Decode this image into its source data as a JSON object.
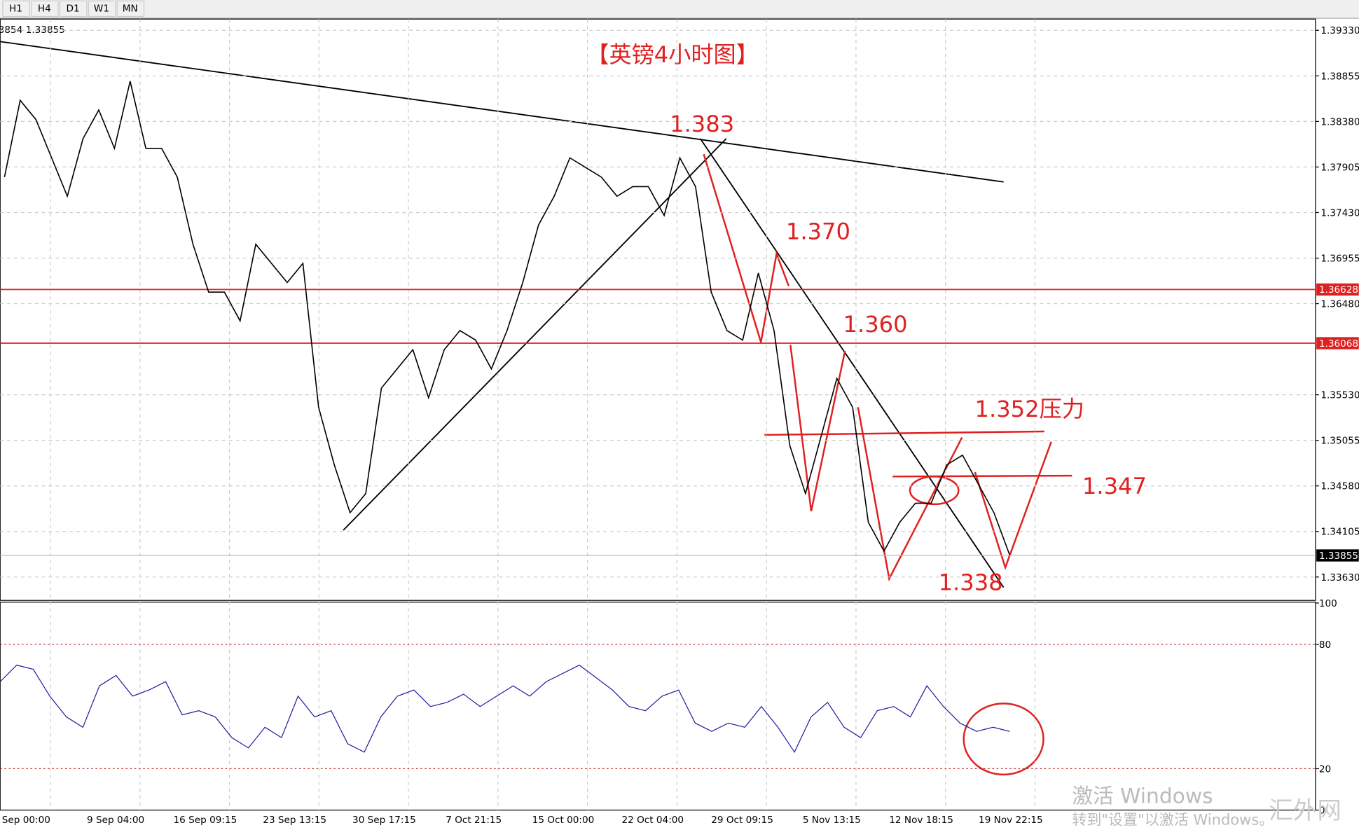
{
  "toolbar": {
    "buttons": [
      "H1",
      "H4",
      "D1",
      "W1",
      "MN"
    ]
  },
  "chart": {
    "symbol_info": "3854 1.33855",
    "title": "【英镑4小时图】",
    "annotations": [
      "1.383",
      "1.370",
      "1.360",
      "1.352压力",
      "1.347",
      "1.338"
    ],
    "price_ticks": [
      {
        "value": 1.3933,
        "label": "1.39330"
      },
      {
        "value": 1.38855,
        "label": "1.38855"
      },
      {
        "value": 1.3838,
        "label": "1.38380"
      },
      {
        "value": 1.37905,
        "label": "1.37905"
      },
      {
        "value": 1.3743,
        "label": "1.37430"
      },
      {
        "value": 1.36955,
        "label": "1.36955"
      },
      {
        "value": 1.3648,
        "label": "1.36480"
      },
      {
        "value": 1.3553,
        "label": "1.35530"
      },
      {
        "value": 1.35055,
        "label": "1.35055"
      },
      {
        "value": 1.3458,
        "label": "1.34580"
      },
      {
        "value": 1.34105,
        "label": "1.34105"
      },
      {
        "value": 1.3363,
        "label": "1.33630"
      }
    ],
    "price_lim": [
      1.3933,
      1.3363
    ],
    "levels": [
      {
        "value": 1.36628,
        "label": "1.36628",
        "color": "#e02020"
      },
      {
        "value": 1.36068,
        "label": "1.36068",
        "color": "#e02020"
      }
    ],
    "current_price": {
      "value": 1.33855,
      "label": "1.33855"
    },
    "closes": [
      1.378,
      1.386,
      1.384,
      1.38,
      1.376,
      1.382,
      1.385,
      1.381,
      1.388,
      1.381,
      1.381,
      1.378,
      1.371,
      1.366,
      1.366,
      1.363,
      1.371,
      1.369,
      1.367,
      1.369,
      1.354,
      1.348,
      1.343,
      1.345,
      1.356,
      1.358,
      1.36,
      1.355,
      1.36,
      1.362,
      1.361,
      1.358,
      1.362,
      1.367,
      1.373,
      1.376,
      1.38,
      1.379,
      1.378,
      1.376,
      1.377,
      1.377,
      1.374,
      1.38,
      1.377,
      1.366,
      1.362,
      1.361,
      1.368,
      1.362,
      1.35,
      1.345,
      1.351,
      1.357,
      1.354,
      1.342,
      1.339,
      1.342,
      1.344,
      1.344,
      1.348,
      1.349,
      1.346,
      1.343,
      1.3386
    ],
    "time_labels": [
      "Sep 00:00",
      "9 Sep 04:00",
      "16 Sep 09:15",
      "23 Sep 13:15",
      "30 Sep 17:15",
      "7 Oct 21:15",
      "15 Oct 00:00",
      "22 Oct 04:00",
      "29 Oct 09:15",
      "5 Nov 13:15",
      "12 Nov 18:15",
      "19 Nov 22:15"
    ]
  },
  "rsi": {
    "ticks": [
      100,
      80,
      20,
      0
    ],
    "levels": [
      80,
      20
    ],
    "lim": [
      0,
      100
    ],
    "values": [
      62,
      70,
      68,
      55,
      45,
      40,
      60,
      65,
      55,
      58,
      62,
      46,
      48,
      45,
      35,
      30,
      40,
      35,
      55,
      45,
      48,
      32,
      28,
      45,
      55,
      58,
      50,
      52,
      56,
      50,
      55,
      60,
      55,
      62,
      66,
      70,
      64,
      58,
      50,
      48,
      55,
      58,
      42,
      38,
      42,
      40,
      50,
      40,
      28,
      45,
      52,
      40,
      35,
      48,
      50,
      45,
      60,
      50,
      42,
      38,
      40,
      38
    ]
  },
  "watermark": {
    "line1": "激活 Windows",
    "line2": "转到\"设置\"以激活 Windows。",
    "site": "汇外网"
  }
}
